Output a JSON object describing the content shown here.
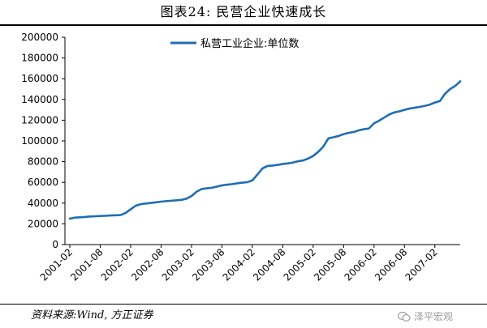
{
  "title": "图表24:    民营企业快速成长",
  "source": "资料来源:Wind, 方正证券",
  "watermark": "泽平宏观",
  "colors": {
    "series": "#1f6eb4",
    "axis": "#000000"
  },
  "chart_data": {
    "type": "line",
    "title": "图表24:    民营企业快速成长",
    "xlabel": "",
    "ylabel": "",
    "ylim": [
      0,
      200000
    ],
    "yticks": [
      0,
      20000,
      40000,
      60000,
      80000,
      100000,
      120000,
      140000,
      160000,
      180000,
      200000
    ],
    "xtick_labels": [
      "2001-02",
      "2001-08",
      "2002-02",
      "2002-08",
      "2003-02",
      "2003-08",
      "2004-02",
      "2004-08",
      "2005-02",
      "2005-08",
      "2006-02",
      "2006-08",
      "2007-02"
    ],
    "grid": false,
    "legend": "top-center",
    "series": [
      {
        "name": "私营工业企业:单位数",
        "x": [
          "2001-02",
          "2001-03",
          "2001-04",
          "2001-05",
          "2001-06",
          "2001-07",
          "2001-08",
          "2001-09",
          "2001-10",
          "2001-11",
          "2001-12",
          "2002-01",
          "2002-02",
          "2002-03",
          "2002-04",
          "2002-05",
          "2002-06",
          "2002-07",
          "2002-08",
          "2002-09",
          "2002-10",
          "2002-11",
          "2002-12",
          "2003-01",
          "2003-02",
          "2003-03",
          "2003-04",
          "2003-05",
          "2003-06",
          "2003-07",
          "2003-08",
          "2003-09",
          "2003-10",
          "2003-11",
          "2003-12",
          "2004-01",
          "2004-02",
          "2004-03",
          "2004-04",
          "2004-05",
          "2004-06",
          "2004-07",
          "2004-08",
          "2004-09",
          "2004-10",
          "2004-11",
          "2004-12",
          "2005-01",
          "2005-02",
          "2005-03",
          "2005-04",
          "2005-05",
          "2005-06",
          "2005-07",
          "2005-08",
          "2005-09",
          "2005-10",
          "2005-11",
          "2005-12",
          "2006-01",
          "2006-02",
          "2006-03",
          "2006-04",
          "2006-05",
          "2006-06",
          "2006-07",
          "2006-08",
          "2006-09",
          "2006-10",
          "2006-11",
          "2006-12",
          "2007-01",
          "2007-02",
          "2007-03",
          "2007-04",
          "2007-05",
          "2007-06",
          "2007-07"
        ],
        "values": [
          25000,
          26000,
          26300,
          26600,
          27100,
          27300,
          27600,
          27800,
          28100,
          28300,
          28500,
          30500,
          34000,
          37500,
          39000,
          39600,
          40200,
          40800,
          41400,
          41900,
          42300,
          42700,
          43100,
          44300,
          46800,
          51000,
          53600,
          54300,
          54800,
          55900,
          57100,
          57800,
          58300,
          59100,
          59700,
          60200,
          61900,
          67500,
          73500,
          75800,
          76200,
          76900,
          77800,
          78300,
          79100,
          80400,
          81100,
          83000,
          85500,
          89500,
          94500,
          102500,
          103500,
          104800,
          106500,
          107800,
          108600,
          110200,
          111300,
          112000,
          117000,
          119500,
          122500,
          125500,
          127500,
          128500,
          130000,
          131200,
          132000,
          132800,
          133800,
          135000,
          137000,
          138500,
          145500,
          150000,
          153000,
          157500
        ]
      }
    ]
  }
}
